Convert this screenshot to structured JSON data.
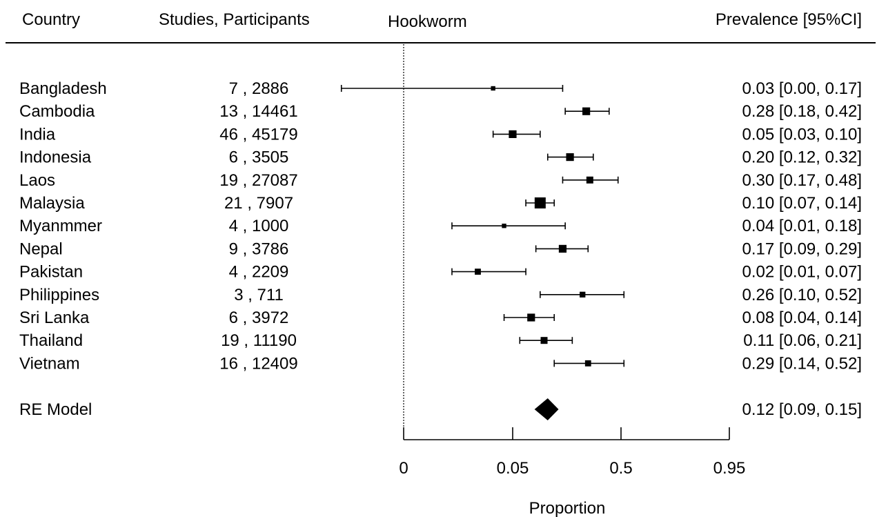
{
  "chart_data": {
    "type": "forest",
    "header": {
      "country": "Country",
      "studies": "Studies, Participants",
      "outcome": "Hookworm",
      "estimate": "Prevalence [95%CI]"
    },
    "rows": [
      {
        "country": "Bangladesh",
        "studies_participants": "7 , 2886",
        "label": "0.03 [0.00, 0.17]",
        "est": 0.03,
        "lo": 0.0,
        "hi": 0.17,
        "weight": 1
      },
      {
        "country": "Cambodia",
        "studies_participants": "13 , 14461",
        "label": "0.28 [0.18, 0.42]",
        "est": 0.28,
        "lo": 0.18,
        "hi": 0.42,
        "weight": 3
      },
      {
        "country": "India",
        "studies_participants": "46 , 45179",
        "label": "0.05 [0.03, 0.10]",
        "est": 0.05,
        "lo": 0.03,
        "hi": 0.1,
        "weight": 3
      },
      {
        "country": "Indonesia",
        "studies_participants": "6 , 3505",
        "label": "0.20 [0.12, 0.32]",
        "est": 0.2,
        "lo": 0.12,
        "hi": 0.32,
        "weight": 3
      },
      {
        "country": "Laos",
        "studies_participants": "19 , 27087",
        "label": "0.30 [0.17, 0.48]",
        "est": 0.3,
        "lo": 0.17,
        "hi": 0.48,
        "weight": 2.5
      },
      {
        "country": "Malaysia",
        "studies_participants": "21 , 7907",
        "label": "0.10 [0.07, 0.14]",
        "est": 0.1,
        "lo": 0.07,
        "hi": 0.14,
        "weight": 5
      },
      {
        "country": "Myanmmer",
        "studies_participants": "4 , 1000",
        "label": "0.04 [0.01, 0.18]",
        "est": 0.04,
        "lo": 0.01,
        "hi": 0.18,
        "weight": 1
      },
      {
        "country": "Nepal",
        "studies_participants": "9 , 3786",
        "label": "0.17 [0.09, 0.29]",
        "est": 0.17,
        "lo": 0.09,
        "hi": 0.29,
        "weight": 3
      },
      {
        "country": "Pakistan",
        "studies_participants": "4 , 2209",
        "label": "0.02 [0.01, 0.07]",
        "est": 0.02,
        "lo": 0.01,
        "hi": 0.07,
        "weight": 2
      },
      {
        "country": "Philippines",
        "studies_participants": "3 , 711",
        "label": "0.26 [0.10, 0.52]",
        "est": 0.26,
        "lo": 0.1,
        "hi": 0.52,
        "weight": 1.8
      },
      {
        "country": "Sri Lanka",
        "studies_participants": "6 , 3972",
        "label": "0.08 [0.04, 0.14]",
        "est": 0.08,
        "lo": 0.04,
        "hi": 0.14,
        "weight": 3
      },
      {
        "country": "Thailand",
        "studies_participants": "19 , 11190",
        "label": "0.11 [0.06, 0.21]",
        "est": 0.11,
        "lo": 0.06,
        "hi": 0.21,
        "weight": 2.5
      },
      {
        "country": "Vietnam",
        "studies_participants": "16 , 12409",
        "label": "0.29 [0.14, 0.52]",
        "est": 0.29,
        "lo": 0.14,
        "hi": 0.52,
        "weight": 2
      }
    ],
    "summary": {
      "country": "RE Model",
      "label": "0.12 [0.09, 0.15]",
      "est": 0.12,
      "lo": 0.09,
      "hi": 0.15
    },
    "xlabel": "Proportion",
    "xscale": "logit",
    "ticks": [
      {
        "value": 0.005,
        "label": "0"
      },
      {
        "value": 0.05,
        "label": "0.05"
      },
      {
        "value": 0.5,
        "label": "0.5"
      },
      {
        "value": 0.95,
        "label": "0.95"
      }
    ],
    "reference_line_label": "0"
  }
}
